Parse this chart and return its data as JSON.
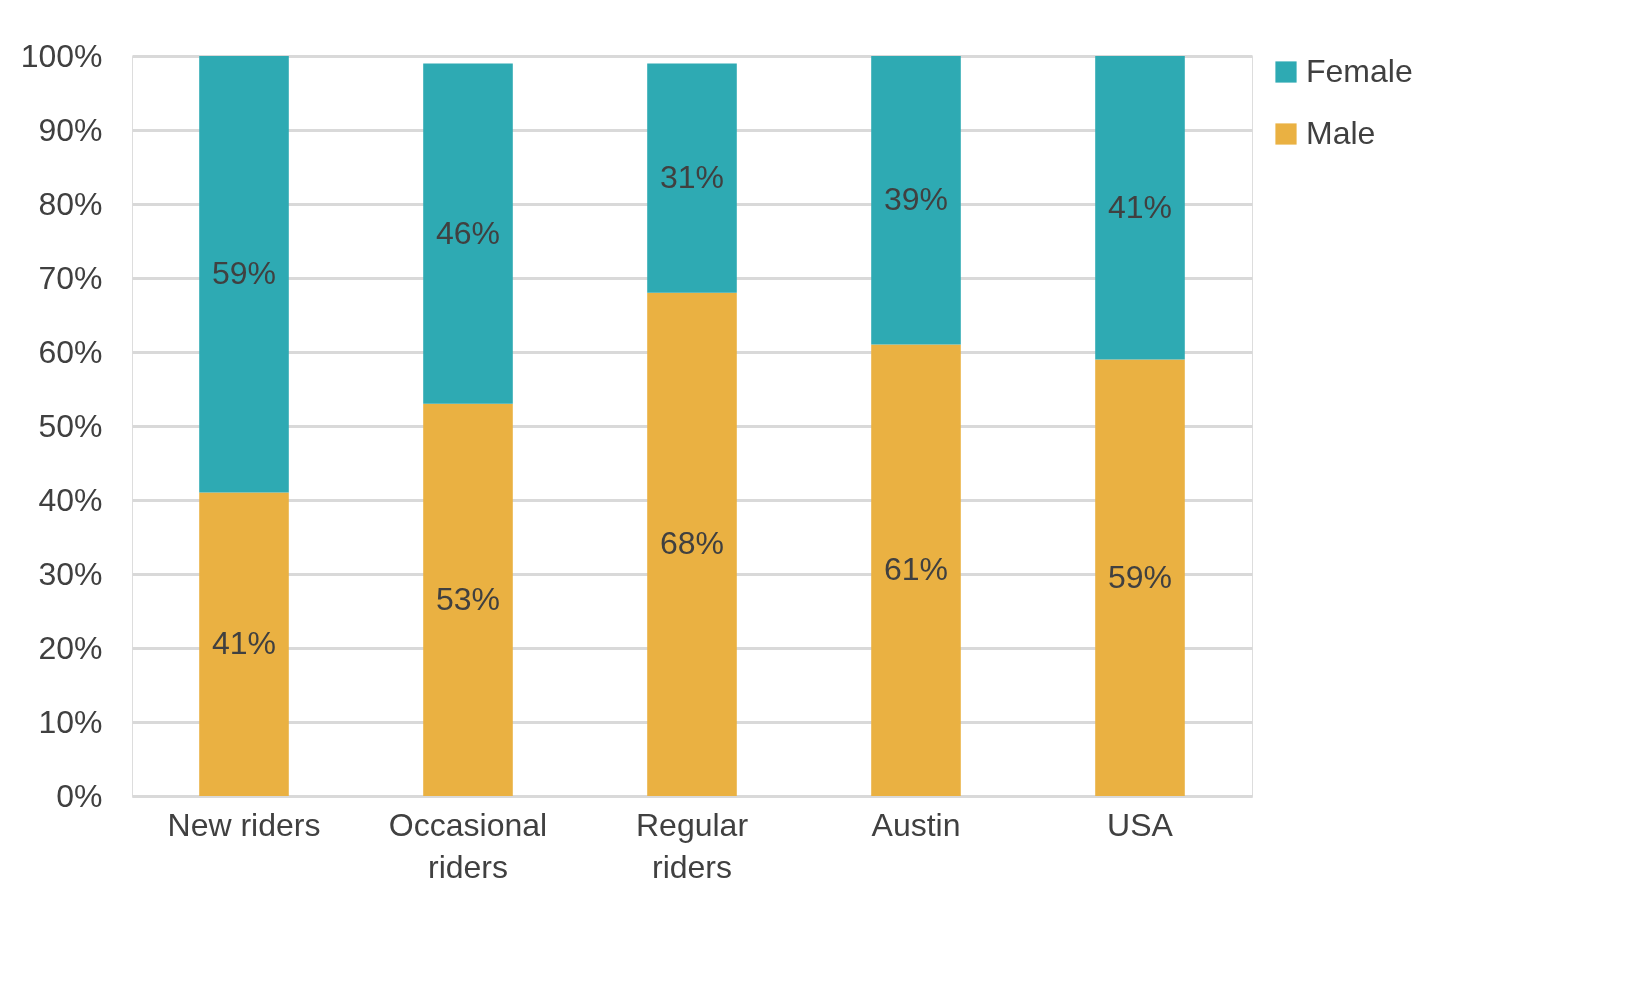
{
  "chart_data": {
    "type": "bar",
    "stacked": true,
    "categories": [
      "New riders",
      "Occasional riders",
      "Regular riders",
      "Austin",
      "USA"
    ],
    "series": [
      {
        "name": "Male",
        "color": "#eab142",
        "values": [
          41,
          53,
          68,
          61,
          59
        ]
      },
      {
        "name": "Female",
        "color": "#2eaab3",
        "values": [
          59,
          46,
          31,
          39,
          41
        ]
      }
    ],
    "ylim": [
      0,
      100
    ],
    "yticks": [
      {
        "value": 0,
        "label": "0%"
      },
      {
        "value": 10,
        "label": "10%"
      },
      {
        "value": 20,
        "label": "20%"
      },
      {
        "value": 30,
        "label": "30%"
      },
      {
        "value": 40,
        "label": "40%"
      },
      {
        "value": 50,
        "label": "50%"
      },
      {
        "value": 60,
        "label": "60%"
      },
      {
        "value": 70,
        "label": "70%"
      },
      {
        "value": 80,
        "label": "80%"
      },
      {
        "value": 90,
        "label": "90%"
      },
      {
        "value": 100,
        "label": "100%"
      }
    ],
    "value_labels": [
      [
        "41%",
        "53%",
        "68%",
        "61%",
        "59%"
      ],
      [
        "59%",
        "46%",
        "31%",
        "39%",
        "41%"
      ]
    ],
    "grid": "y",
    "legend": "right"
  }
}
